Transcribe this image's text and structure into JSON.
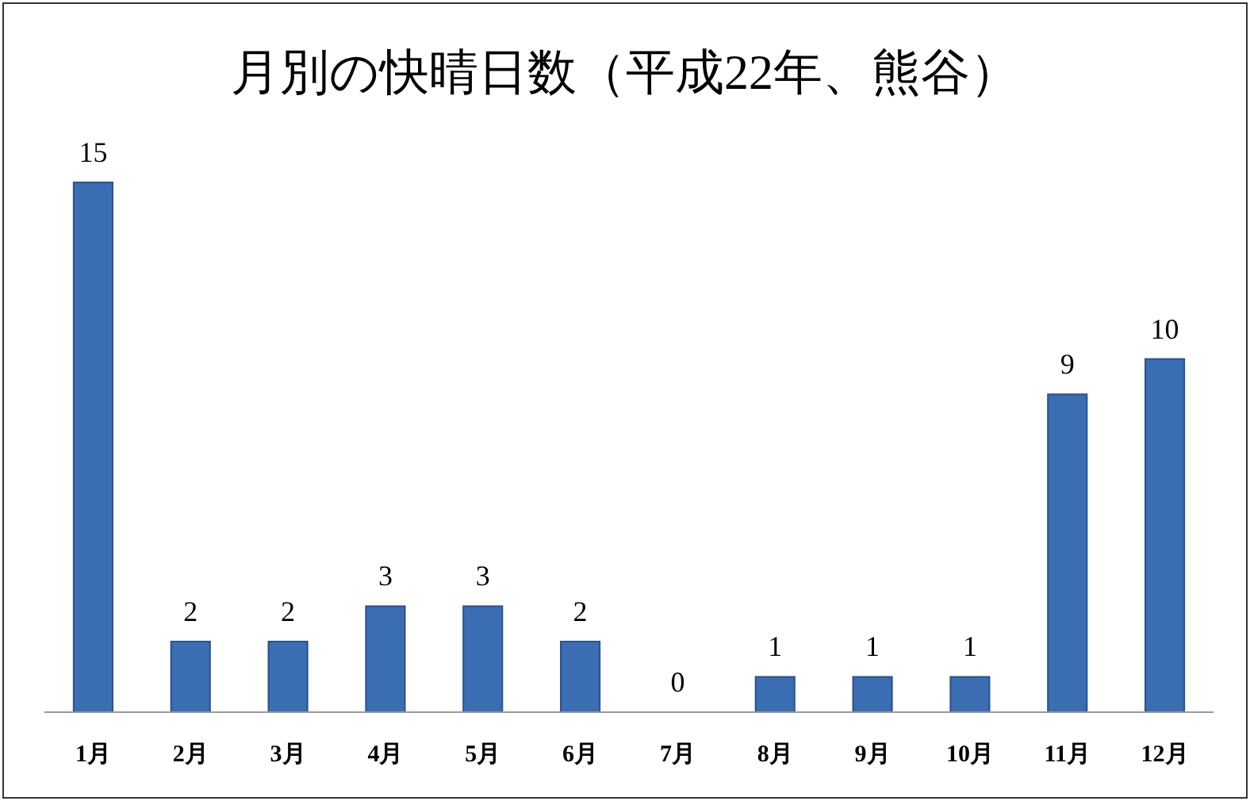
{
  "chart_data": {
    "type": "bar",
    "title": "月別の快晴日数（平成22年、熊谷）",
    "categories": [
      "1月",
      "2月",
      "3月",
      "4月",
      "5月",
      "6月",
      "7月",
      "8月",
      "9月",
      "10月",
      "11月",
      "12月"
    ],
    "values": [
      15,
      2,
      2,
      3,
      3,
      2,
      0,
      1,
      1,
      1,
      9,
      10
    ],
    "color": "#3b6db3",
    "data_labels": true
  }
}
